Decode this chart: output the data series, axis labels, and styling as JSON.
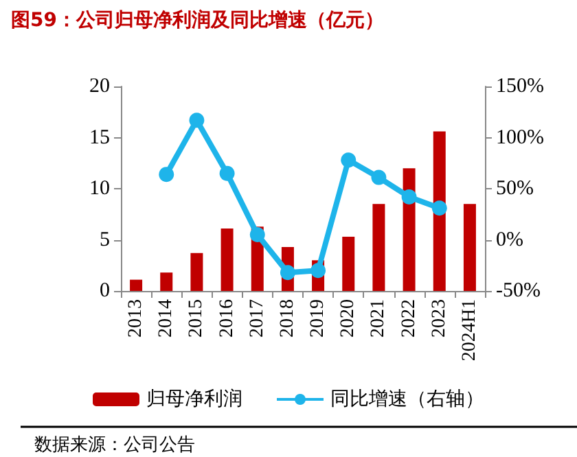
{
  "chart_data": {
    "type": "bar",
    "title": "图59：公司归母净利润及同比增速（亿元）",
    "categories": [
      "2013",
      "2014",
      "2015",
      "2016",
      "2017",
      "2018",
      "2019",
      "2020",
      "2021",
      "2022",
      "2023",
      "2024H1"
    ],
    "series": [
      {
        "name": "归母净利润",
        "color": "#c00000",
        "values": [
          1.1,
          1.8,
          3.7,
          6.1,
          6.3,
          4.3,
          3.0,
          5.3,
          8.5,
          12.0,
          15.6,
          8.5
        ]
      },
      {
        "name": "同比增速（右轴）",
        "type": "line",
        "axis": "y2",
        "color": "#1eb4ea",
        "marker": "circle",
        "values": [
          null,
          64,
          117,
          65,
          5,
          -32,
          -30,
          78,
          61,
          42,
          31,
          null
        ]
      }
    ],
    "ylim": [
      0,
      20
    ],
    "yticks": [
      0,
      5,
      10,
      15,
      20
    ],
    "y2lim": [
      -50,
      150
    ],
    "y2ticks": [
      {
        "value": -50,
        "label": "-50%"
      },
      {
        "value": 0,
        "label": "0%"
      },
      {
        "value": 50,
        "label": "50%"
      },
      {
        "value": 100,
        "label": "100%"
      },
      {
        "value": 150,
        "label": "150%"
      }
    ],
    "legend": "bottom",
    "grid": false,
    "annotations": [
      "数据来源：公司公告"
    ]
  }
}
